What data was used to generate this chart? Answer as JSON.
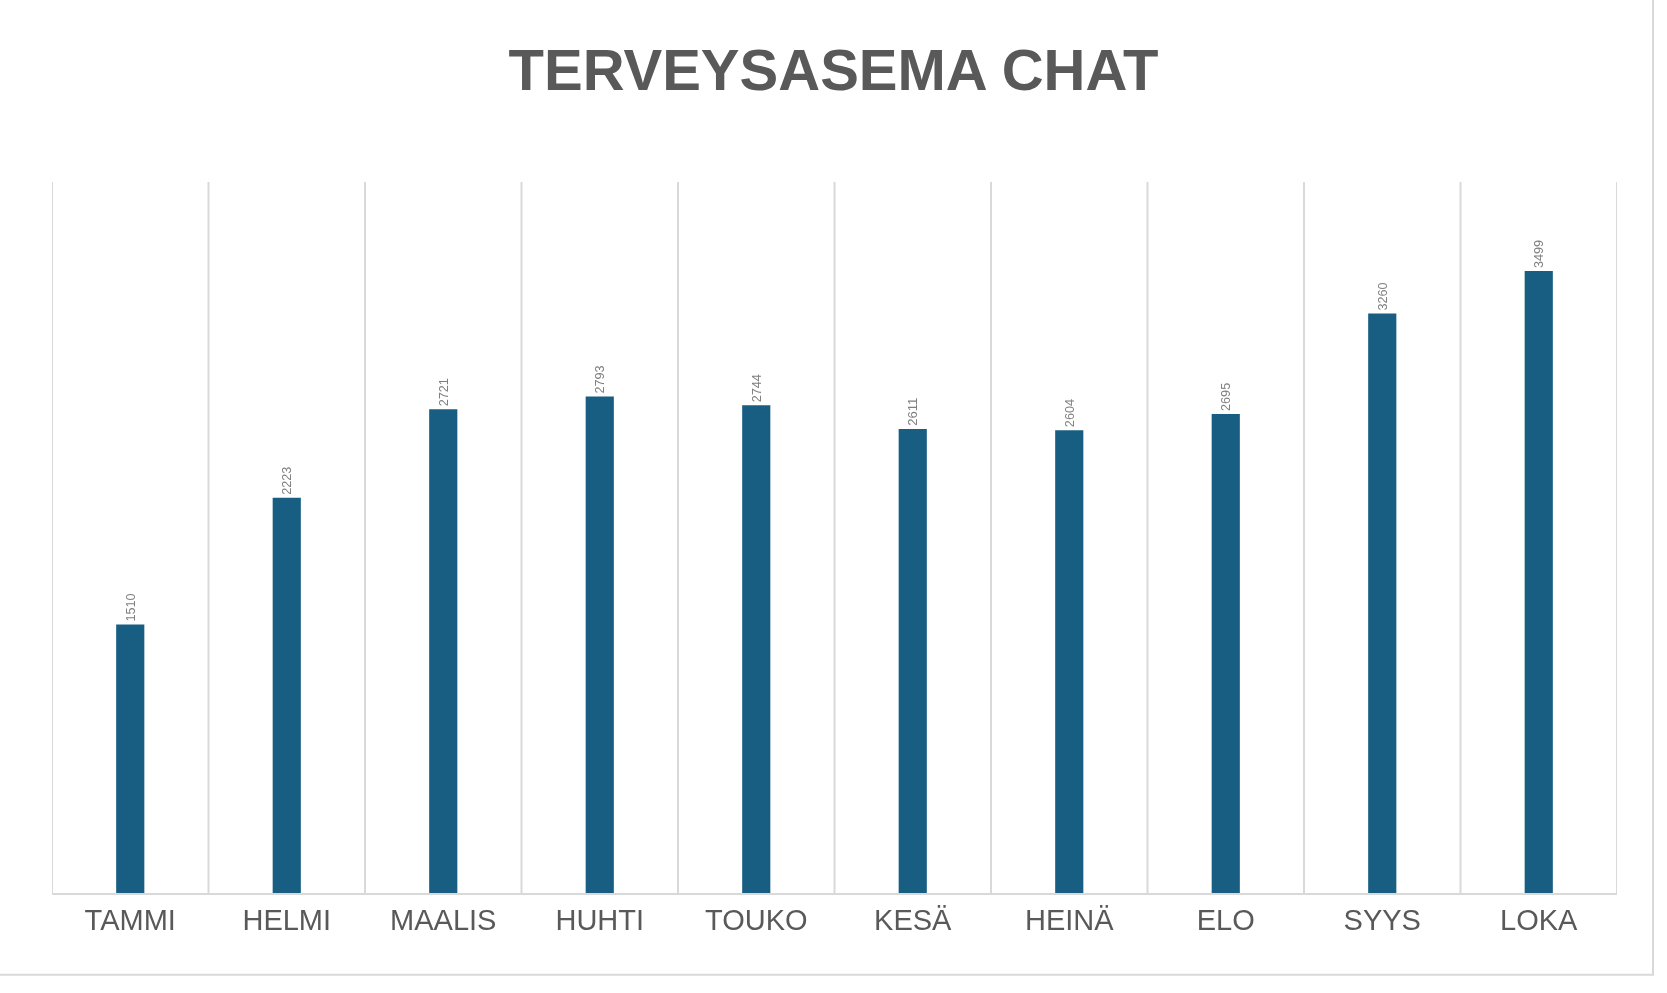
{
  "chart_data": {
    "type": "bar",
    "title": "TERVEYSASEMA CHAT",
    "categories": [
      "TAMMI",
      "HELMI",
      "MAALIS",
      "HUHTI",
      "TOUKO",
      "KESÄ",
      "HEINÄ",
      "ELO",
      "SYYS",
      "LOKA"
    ],
    "values": [
      1510,
      2223,
      2721,
      2793,
      2744,
      2611,
      2604,
      2695,
      3260,
      3499
    ],
    "color": "#175e82",
    "ylim": [
      0,
      4000
    ],
    "grid": "x",
    "data_labels": true,
    "tick_labels": "x"
  }
}
